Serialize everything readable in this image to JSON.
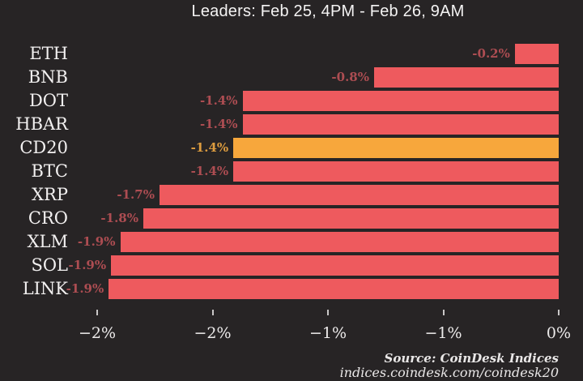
{
  "title": "Leaders: Feb 25, 4PM - Feb 26, 9AM",
  "source": {
    "line1": "Source: CoinDesk Indices",
    "line2": "indices.coindesk.com/coindesk20"
  },
  "chart_data": {
    "type": "bar",
    "orientation": "horizontal",
    "title": "Leaders: Feb 25, 4PM - Feb 26, 9AM",
    "xlabel": "",
    "ylabel": "",
    "xlim": [
      -2.0,
      0
    ],
    "grid": false,
    "legend": "none",
    "categories": [
      "ETH",
      "BNB",
      "DOT",
      "HBAR",
      "CD20",
      "BTC",
      "XRP",
      "CRO",
      "XLM",
      "SOL",
      "LINK"
    ],
    "values": [
      -0.2,
      -0.8,
      -1.4,
      -1.4,
      -1.4,
      -1.4,
      -1.7,
      -1.8,
      -1.9,
      -1.9,
      -1.9
    ],
    "value_labels": [
      "-0.2%",
      "-0.8%",
      "-1.4%",
      "-1.4%",
      "-1.4%",
      "-1.4%",
      "-1.7%",
      "-1.8%",
      "-1.9%",
      "-1.9%",
      "-1.9%"
    ],
    "bar_extents_pct": [
      -0.19,
      -0.8,
      -1.37,
      -1.37,
      -1.41,
      -1.41,
      -1.73,
      -1.8,
      -1.9,
      -1.94,
      -1.95
    ],
    "highlight_category": "CD20",
    "x_ticks": [
      {
        "value": -2.0,
        "label": "−2%"
      },
      {
        "value": -1.5,
        "label": "−2%"
      },
      {
        "value": -1.0,
        "label": "−1%"
      },
      {
        "value": -0.5,
        "label": "−1%"
      },
      {
        "value": 0.0,
        "label": "0%"
      }
    ],
    "colors": {
      "background": "#272425",
      "bar": "#ee5a5e",
      "highlight_bar": "#f7a73c",
      "value_label": "#ad4d52",
      "highlight_value_label": "#dd9c3f",
      "text": "#f2f0f0"
    }
  }
}
